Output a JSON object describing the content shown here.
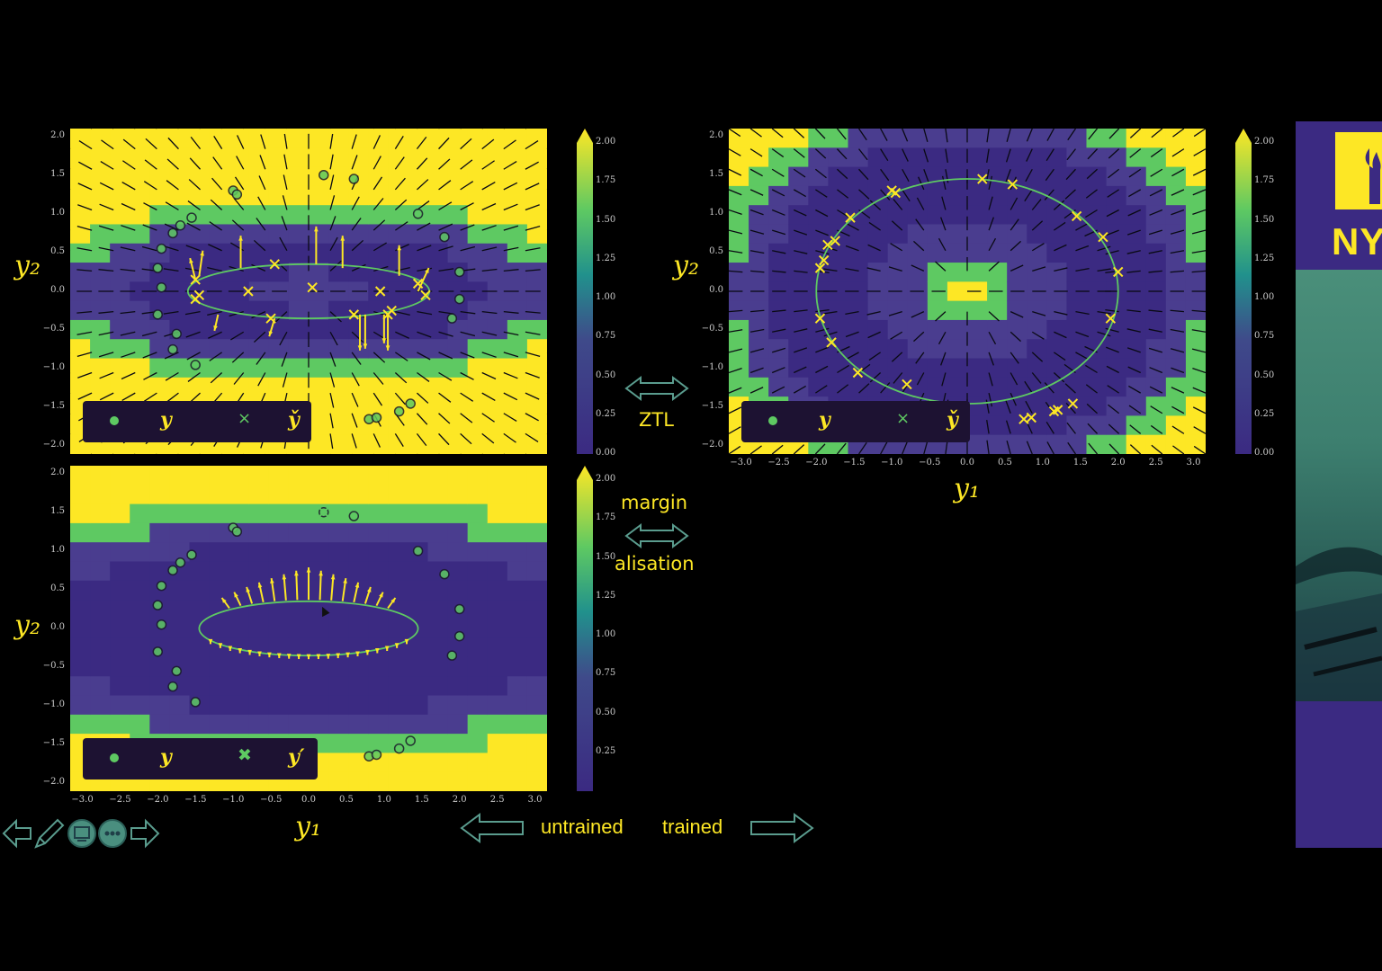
{
  "colors": {
    "yellow": "#fde725",
    "green": "#5ec962",
    "teal": "#21918c",
    "navy": "#3b2a82",
    "dark": "#2c1a4e"
  },
  "plots": {
    "top_left": {
      "ylabel": "y₂",
      "yticks": [
        "2.0",
        "1.5",
        "1.0",
        "0.5",
        "0.0",
        "−0.5",
        "−1.0",
        "−1.5",
        "−2.0"
      ],
      "legend_a": "y",
      "legend_b": "y̌",
      "legend_b_marker": "×"
    },
    "bottom_left": {
      "ylabel": "y₂",
      "xlabel": "y₁",
      "yticks": [
        "2.0",
        "1.5",
        "1.0",
        "0.5",
        "0.0",
        "−0.5",
        "−1.0",
        "−1.5",
        "−2.0"
      ],
      "xticks": [
        "−3.0",
        "−2.5",
        "−2.0",
        "−1.5",
        "−1.0",
        "−0.5",
        "0.0",
        "0.5",
        "1.0",
        "1.5",
        "2.0",
        "2.5",
        "3.0"
      ],
      "legend_a": "y",
      "legend_b": "y′",
      "legend_b_marker": "✖"
    },
    "top_right": {
      "ylabel": "y₂",
      "xlabel": "y₁",
      "yticks": [
        "2.0",
        "1.5",
        "1.0",
        "0.5",
        "0.0",
        "−0.5",
        "−1.0",
        "−1.5",
        "−2.0"
      ],
      "xticks": [
        "−3.0",
        "−2.5",
        "−2.0",
        "−1.5",
        "−1.0",
        "−0.5",
        "0.0",
        "0.5",
        "1.0",
        "1.5",
        "2.0",
        "2.5",
        "3.0"
      ],
      "legend_a": "y",
      "legend_b": "y̌",
      "legend_b_marker": "×"
    }
  },
  "colorbars": {
    "top_left": [
      "2.00",
      "1.75",
      "1.50",
      "1.25",
      "1.00",
      "0.75",
      "0.50",
      "0.25",
      "0.00"
    ],
    "bottom_left": [
      "2.00",
      "1.75",
      "1.50",
      "1.25",
      "1.00",
      "0.75",
      "0.50",
      "0.25"
    ],
    "top_right": [
      "2.00",
      "1.75",
      "1.50",
      "1.25",
      "1.00",
      "0.75",
      "0.50",
      "0.25",
      "0.00"
    ]
  },
  "annotations": {
    "ztl": "ZTL",
    "margin": "margin",
    "alisation": "alisation",
    "untrained": "untrained",
    "trained": "trained"
  },
  "nyu": {
    "text": "NY"
  },
  "nav_icons": [
    "arrow-left-icon",
    "pencil-icon",
    "screen-icon",
    "more-icon",
    "arrow-right-icon"
  ]
}
